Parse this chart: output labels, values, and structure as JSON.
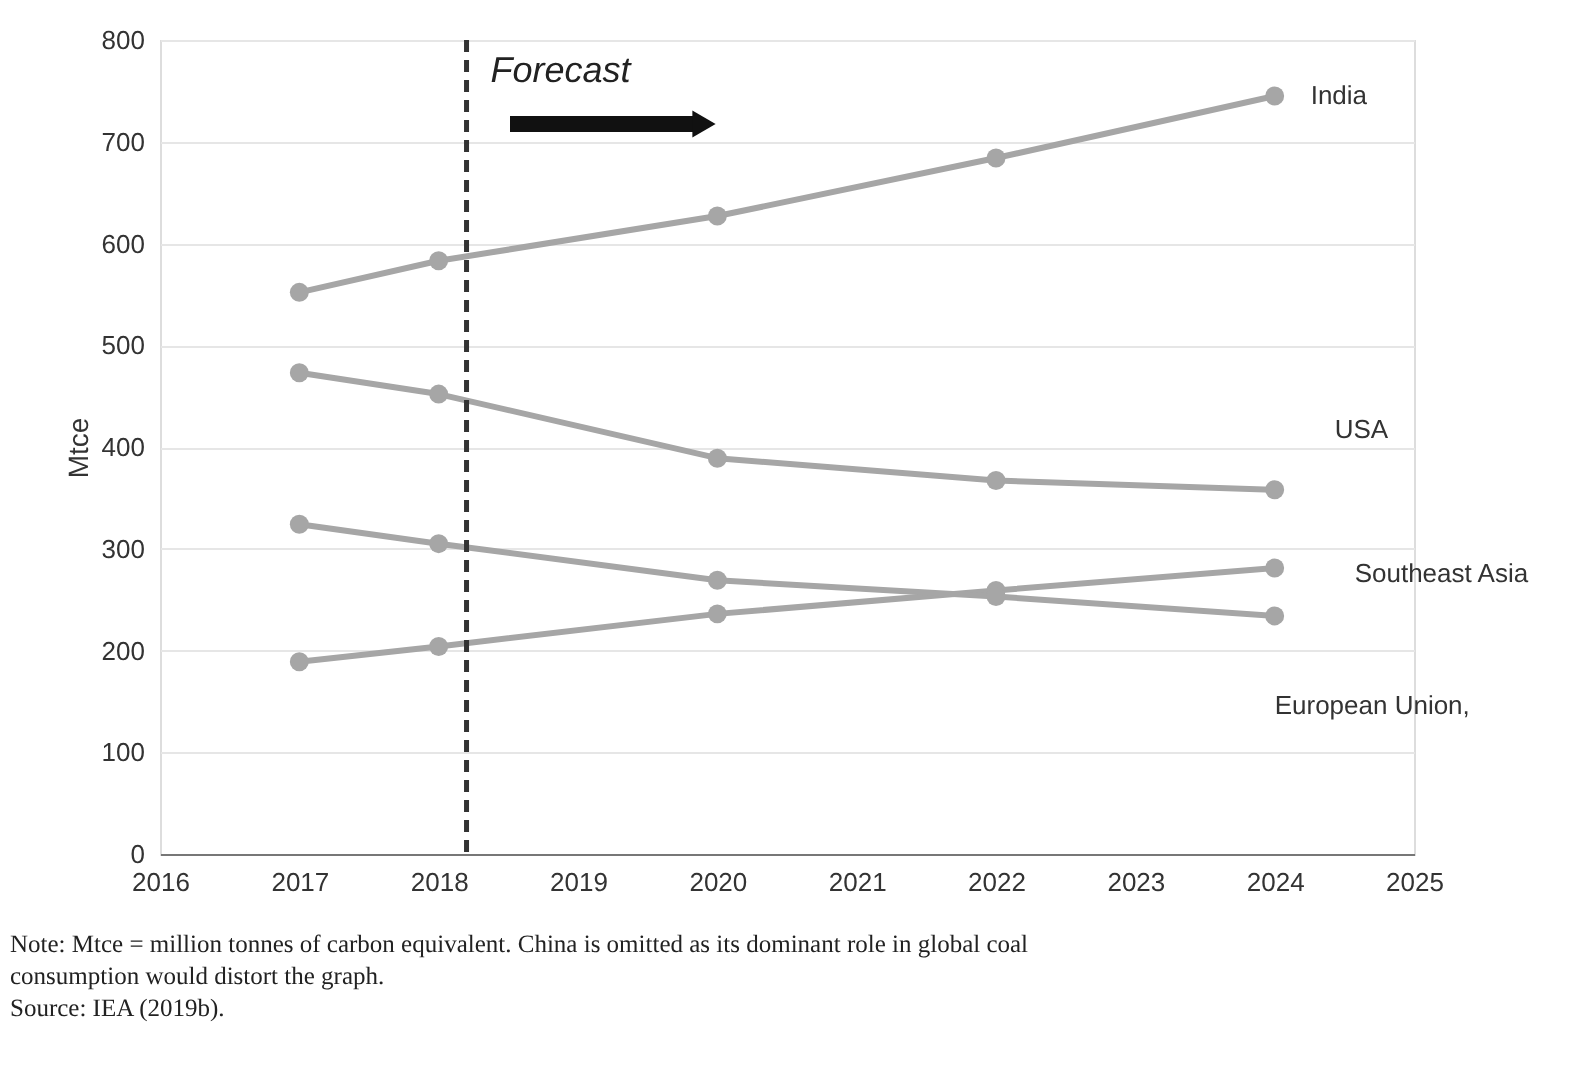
{
  "chart_data": {
    "type": "line",
    "ylabel": "Mtce",
    "x": [
      2017,
      2018,
      2020,
      2022,
      2024
    ],
    "series": [
      {
        "name": "India",
        "color": "#a6a6a6",
        "values": [
          552,
          583,
          627,
          684,
          745
        ]
      },
      {
        "name": "USA",
        "color": "#a6a6a6",
        "values": [
          473,
          452,
          389,
          367,
          358
        ]
      },
      {
        "name": "Southeast Asia",
        "color": "#a6a6a6",
        "values": [
          189,
          204,
          236,
          259,
          281
        ]
      },
      {
        "name": "European Union,",
        "color": "#a6a6a6",
        "values": [
          324,
          305,
          269,
          253,
          234
        ]
      }
    ],
    "xlim": [
      2016,
      2025
    ],
    "xticks": [
      2016,
      2017,
      2018,
      2019,
      2020,
      2021,
      2022,
      2023,
      2024,
      2025
    ],
    "ylim": [
      0,
      800
    ],
    "yticks": [
      0,
      100,
      200,
      300,
      400,
      500,
      600,
      700,
      800
    ],
    "grid": "y",
    "legend": false,
    "marker": "circle",
    "line_style": "solid",
    "ref_lines": [
      {
        "axis": "x",
        "value": 2018.2,
        "color": "#333333",
        "line_style": "dashed"
      }
    ],
    "annotations": [
      "Forecast",
      "Note:  Mtce = million tonnes of carbon equivalent. China is omitted as its dominant role in global coal consumption would distort the graph.",
      "Source:  IEA (2019b)."
    ]
  }
}
